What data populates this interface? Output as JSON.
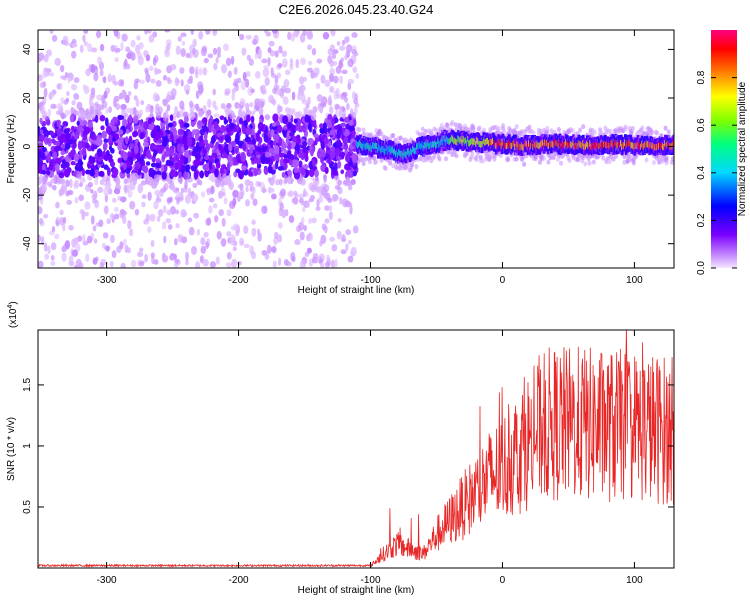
{
  "title": "C2E6.2026.045.23.40.G24",
  "chart_data": [
    {
      "type": "heatmap",
      "xlabel": "Height of straight line (km)",
      "ylabel": "Frequency (Hz)",
      "xlim": [
        -352,
        130
      ],
      "ylim": [
        -50,
        48
      ],
      "xticks": [
        -300,
        -200,
        -100,
        0,
        100
      ],
      "yticks": [
        -40,
        -20,
        0,
        20,
        40
      ],
      "description_series": [
        {
          "name": "noise region (heights < -110 km): scattered speckle across all frequencies, band between -15 and 15 Hz",
          "x_range": [
            -352,
            -110
          ]
        },
        {
          "name": "signal trace near 0 Hz (heights > -110 km)",
          "x": [
            -110,
            -90,
            -75,
            -60,
            -40,
            -20,
            0,
            20,
            40,
            60,
            80,
            100,
            130
          ],
          "y": [
            1,
            -1,
            -3,
            0,
            3,
            2,
            1,
            0.5,
            1,
            0.5,
            1,
            0.5,
            0.5
          ]
        }
      ]
    },
    {
      "type": "line",
      "xlabel": "Height of straight line (km)",
      "ylabel": "SNR (10 * v/v)",
      "scale_note": "(x10",
      "scale_exp": "4",
      "xlim": [
        -352,
        130
      ],
      "ylim": [
        0,
        1.95
      ],
      "xticks": [
        -300,
        -200,
        -100,
        0,
        100
      ],
      "yticks": [
        0.5,
        1,
        1.5
      ],
      "series": [
        {
          "name": "SNR envelope",
          "x": [
            -352,
            -100,
            -90,
            -80,
            -70,
            -60,
            -50,
            -40,
            -30,
            -20,
            -10,
            0,
            10,
            20,
            30,
            40,
            60,
            80,
            100,
            130
          ],
          "y": [
            0.02,
            0.02,
            0.15,
            0.25,
            0.2,
            0.15,
            0.35,
            0.5,
            0.65,
            0.8,
            0.95,
            1.05,
            1.2,
            1.35,
            1.5,
            1.52,
            1.52,
            1.5,
            1.5,
            1.45
          ]
        }
      ]
    }
  ],
  "colorbar": {
    "label": "Normalized spectral amplitude",
    "ticks": [
      "0.0",
      "0.2",
      "0.4",
      "0.6",
      "0.8"
    ],
    "tick_values": [
      0.0,
      0.2,
      0.4,
      0.6,
      0.8
    ],
    "range": [
      0,
      1
    ],
    "colors": [
      "#f4e6ff",
      "#c080ff",
      "#7a00ff",
      "#0000ff",
      "#00d8ff",
      "#00ff80",
      "#80ff00",
      "#ffff00",
      "#ff8000",
      "#ff0000",
      "#ff0080"
    ]
  },
  "colors": {
    "line": "#e82626",
    "axis": "#000000"
  }
}
